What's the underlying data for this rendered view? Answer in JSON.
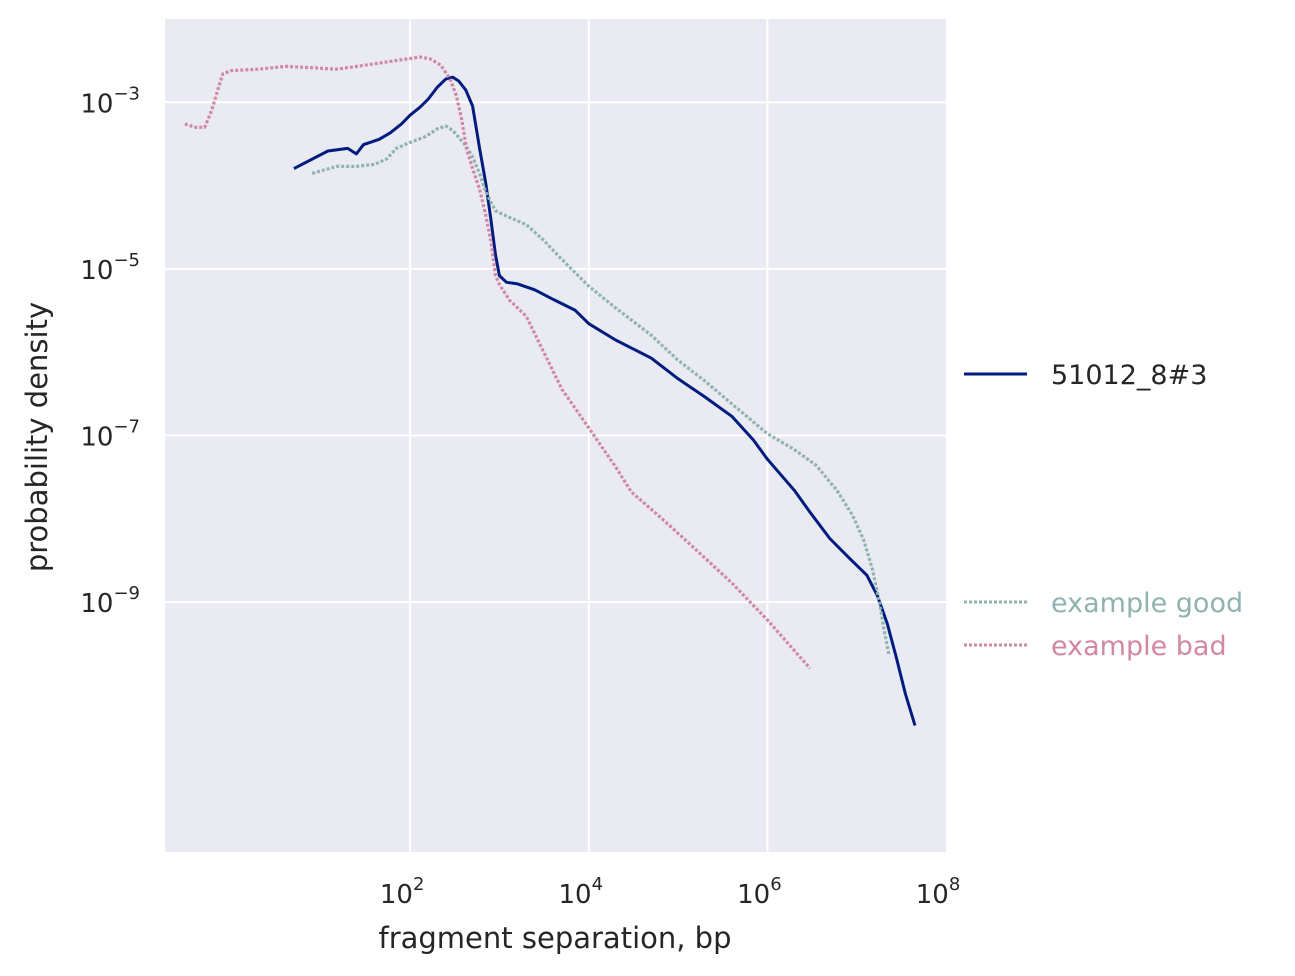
{
  "chart_data": {
    "type": "line",
    "xlabel": "fragment separation, bp",
    "ylabel": "probability density",
    "x_scale": "log",
    "y_scale": "log",
    "xlim": [
      0.18,
      100000000
    ],
    "ylim": [
      1e-12,
      0.01
    ],
    "grid": true,
    "background": "#eaeaf2",
    "x_ticks": [
      {
        "value": 100,
        "label": "10",
        "exp": "2"
      },
      {
        "value": 10000,
        "label": "10",
        "exp": "4"
      },
      {
        "value": 1000000,
        "label": "10",
        "exp": "6"
      },
      {
        "value": 100000000,
        "label": "10",
        "exp": "8"
      }
    ],
    "y_ticks": [
      {
        "value": 0.001,
        "label": "10",
        "exp": "−3"
      },
      {
        "value": 1e-05,
        "label": "10",
        "exp": "−5"
      },
      {
        "value": 1e-07,
        "label": "10",
        "exp": "−7"
      },
      {
        "value": 1e-09,
        "label": "10",
        "exp": "−9"
      }
    ],
    "legend_placement": "right",
    "series": [
      {
        "name": "51012_8#3",
        "color": "#001c7f",
        "style": "solid",
        "points": [
          [
            5,
            0.00016
          ],
          [
            12,
            0.00026
          ],
          [
            20,
            0.00028
          ],
          [
            25,
            0.00024
          ],
          [
            30,
            0.00031
          ],
          [
            45,
            0.00036
          ],
          [
            60,
            0.00043
          ],
          [
            80,
            0.00055
          ],
          [
            100,
            0.0007
          ],
          [
            130,
            0.00088
          ],
          [
            160,
            0.0011
          ],
          [
            200,
            0.0015
          ],
          [
            250,
            0.0019
          ],
          [
            300,
            0.002
          ],
          [
            350,
            0.0018
          ],
          [
            420,
            0.0014
          ],
          [
            500,
            0.0009
          ],
          [
            600,
            0.00028
          ],
          [
            700,
            0.00011
          ],
          [
            800,
            4e-05
          ],
          [
            900,
            1.5e-05
          ],
          [
            1000,
            8.3e-06
          ],
          [
            1200,
            6.9e-06
          ],
          [
            1600,
            6.6e-06
          ],
          [
            2500,
            5.6e-06
          ],
          [
            4000,
            4.3e-06
          ],
          [
            7000,
            3.2e-06
          ],
          [
            10000,
            2.2e-06
          ],
          [
            20000,
            1.4e-06
          ],
          [
            50000,
            8.5e-07
          ],
          [
            100000,
            4.8e-07
          ],
          [
            200000,
            2.9e-07
          ],
          [
            400000,
            1.7e-07
          ],
          [
            700000,
            8.8e-08
          ],
          [
            1000000,
            5.2e-08
          ],
          [
            2000000,
            2.2e-08
          ],
          [
            3000000,
            1.2e-08
          ],
          [
            5000000,
            5.8e-09
          ],
          [
            8000000,
            3.5e-09
          ],
          [
            13000000,
            2.1e-09
          ],
          [
            17000000,
            1.2e-09
          ],
          [
            22000000,
            5.5e-10
          ],
          [
            28000000,
            2.1e-10
          ],
          [
            35000000,
            8e-11
          ],
          [
            45000000,
            3.3e-11
          ]
        ]
      },
      {
        "name": "example good",
        "color": "#8fb3ae",
        "style": "dotted",
        "points": [
          [
            8,
            0.00014
          ],
          [
            15,
            0.00017
          ],
          [
            25,
            0.00017
          ],
          [
            40,
            0.00018
          ],
          [
            55,
            0.00021
          ],
          [
            70,
            0.00028
          ],
          [
            100,
            0.00033
          ],
          [
            150,
            0.00039
          ],
          [
            200,
            0.00048
          ],
          [
            250,
            0.00052
          ],
          [
            300,
            0.00046
          ],
          [
            350,
            0.00038
          ],
          [
            420,
            0.0003
          ],
          [
            500,
            0.00022
          ],
          [
            600,
            0.00014
          ],
          [
            700,
            8.5e-05
          ],
          [
            900,
            5e-05
          ],
          [
            1200,
            4.3e-05
          ],
          [
            2000,
            3.4e-05
          ],
          [
            3000,
            2.3e-05
          ],
          [
            5000,
            1.3e-05
          ],
          [
            10000,
            6.2e-06
          ],
          [
            20000,
            3.4e-06
          ],
          [
            50000,
            1.6e-06
          ],
          [
            100000,
            8e-07
          ],
          [
            200000,
            4.5e-07
          ],
          [
            400000,
            2.4e-07
          ],
          [
            1000000,
            1.05e-07
          ],
          [
            2000000,
            6.8e-08
          ],
          [
            3500000,
            4.4e-08
          ],
          [
            6000000,
            2.2e-08
          ],
          [
            9000000,
            1.1e-08
          ],
          [
            12000000,
            5.5e-09
          ],
          [
            15000000,
            2.5e-09
          ],
          [
            18000000,
            9.9e-10
          ],
          [
            20000000,
            5e-10
          ],
          [
            23000000,
            2.3e-10
          ]
        ]
      },
      {
        "name": "example bad",
        "color": "#d088a5",
        "style": "dotted",
        "points": [
          [
            0.3,
            0.00055
          ],
          [
            0.4,
            0.0005
          ],
          [
            0.5,
            0.0005
          ],
          [
            0.6,
            0.0008
          ],
          [
            0.7,
            0.0014
          ],
          [
            0.8,
            0.0022
          ],
          [
            1,
            0.0024
          ],
          [
            2,
            0.0025
          ],
          [
            4,
            0.0027
          ],
          [
            8,
            0.0026
          ],
          [
            15,
            0.0025
          ],
          [
            25,
            0.0027
          ],
          [
            40,
            0.0029
          ],
          [
            60,
            0.0031
          ],
          [
            90,
            0.0033
          ],
          [
            130,
            0.0035
          ],
          [
            170,
            0.0033
          ],
          [
            220,
            0.0028
          ],
          [
            280,
            0.0019
          ],
          [
            330,
            0.0012
          ],
          [
            380,
            0.0006
          ],
          [
            430,
            0.00027
          ],
          [
            500,
            0.00016
          ],
          [
            600,
            9e-05
          ],
          [
            700,
            4.5e-05
          ],
          [
            800,
            2.2e-05
          ],
          [
            900,
            8.5e-06
          ],
          [
            1000,
            6.5e-06
          ],
          [
            1300,
            4.2e-06
          ],
          [
            2000,
            2.7e-06
          ],
          [
            3000,
            1.1e-06
          ],
          [
            5000,
            3.6e-07
          ],
          [
            10000,
            1.23e-07
          ],
          [
            20000,
            4.2e-08
          ],
          [
            30000,
            2.1e-08
          ],
          [
            60000,
            1.1e-08
          ],
          [
            150000,
            4.5e-09
          ],
          [
            400000,
            1.7e-09
          ],
          [
            1000000,
            6.1e-10
          ],
          [
            3000000,
            1.6e-10
          ]
        ]
      }
    ]
  }
}
